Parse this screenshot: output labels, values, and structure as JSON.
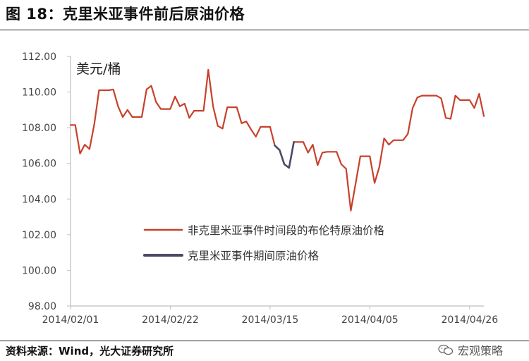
{
  "title": "图 18：克里米亚事件前后原油价格",
  "source": "资料来源：Wind，光大证券研究所",
  "watermark": "宏观策略",
  "chart_data": {
    "type": "line",
    "unit_label": "美元/桶",
    "ylim": [
      98,
      112
    ],
    "y_ticks": [
      "98.00",
      "100.00",
      "102.00",
      "104.00",
      "106.00",
      "108.00",
      "110.00",
      "112.00"
    ],
    "x_tick_labels": [
      "2014/02/01",
      "2014/02/22",
      "2014/03/15",
      "2014/04/05",
      "2014/04/26"
    ],
    "x_tick_days": [
      0,
      21,
      42,
      63,
      84
    ],
    "legend_position": "center",
    "colors": {
      "normal": "#c8402a",
      "event": "#4a4a66",
      "axis": "#bfbfbf"
    },
    "series": [
      {
        "name": "非克里米亚事件时间段的布伦特原油价格",
        "segments": [
          [
            [
              0,
              108.15
            ],
            [
              1,
              108.15
            ],
            [
              2,
              106.55
            ],
            [
              3,
              107.05
            ],
            [
              4,
              106.8
            ],
            [
              5,
              108.2
            ],
            [
              6,
              110.1
            ],
            [
              7,
              110.1
            ],
            [
              8,
              110.1
            ],
            [
              9,
              110.15
            ],
            [
              10,
              109.2
            ],
            [
              11,
              108.6
            ],
            [
              12,
              109.0
            ],
            [
              13,
              108.6
            ],
            [
              14,
              108.6
            ],
            [
              15,
              108.6
            ],
            [
              16,
              110.15
            ],
            [
              17,
              110.35
            ],
            [
              18,
              109.45
            ],
            [
              19,
              109.05
            ],
            [
              20,
              109.05
            ],
            [
              21,
              109.05
            ],
            [
              22,
              109.75
            ],
            [
              23,
              109.2
            ],
            [
              24,
              109.35
            ],
            [
              25,
              108.55
            ],
            [
              26,
              108.95
            ],
            [
              27,
              108.95
            ],
            [
              28,
              108.95
            ],
            [
              29,
              111.25
            ],
            [
              30,
              109.2
            ],
            [
              31,
              108.1
            ],
            [
              32,
              107.95
            ],
            [
              33,
              109.15
            ],
            [
              34,
              109.15
            ],
            [
              35,
              109.15
            ],
            [
              36,
              108.25
            ],
            [
              37,
              108.35
            ],
            [
              38,
              107.9
            ],
            [
              39,
              107.5
            ],
            [
              40,
              108.05
            ],
            [
              41,
              108.05
            ],
            [
              42,
              108.05
            ],
            [
              43,
              107.0
            ]
          ],
          [
            [
              47,
              107.2
            ],
            [
              48,
              107.2
            ],
            [
              49,
              107.2
            ],
            [
              50,
              106.6
            ],
            [
              51,
              107.05
            ],
            [
              52,
              105.9
            ],
            [
              53,
              106.6
            ],
            [
              54,
              106.65
            ],
            [
              55,
              106.65
            ],
            [
              56,
              106.65
            ],
            [
              57,
              105.95
            ],
            [
              58,
              105.7
            ],
            [
              59,
              103.35
            ],
            [
              60,
              104.85
            ],
            [
              61,
              106.4
            ],
            [
              62,
              106.4
            ],
            [
              63,
              106.4
            ],
            [
              64,
              104.9
            ],
            [
              65,
              105.8
            ],
            [
              66,
              107.4
            ],
            [
              67,
              107.05
            ],
            [
              68,
              107.3
            ],
            [
              69,
              107.3
            ],
            [
              70,
              107.3
            ],
            [
              71,
              107.65
            ],
            [
              72,
              109.1
            ],
            [
              73,
              109.7
            ],
            [
              74,
              109.8
            ],
            [
              75,
              109.8
            ],
            [
              76,
              109.8
            ],
            [
              77,
              109.8
            ],
            [
              78,
              109.65
            ],
            [
              79,
              108.55
            ],
            [
              80,
              108.5
            ],
            [
              81,
              109.8
            ],
            [
              82,
              109.55
            ],
            [
              83,
              109.55
            ],
            [
              84,
              109.55
            ],
            [
              85,
              109.1
            ],
            [
              86,
              109.9
            ],
            [
              87,
              108.65
            ]
          ]
        ]
      },
      {
        "name": "克里米亚事件期间原油价格",
        "segments": [
          [
            [
              43,
              107.0
            ],
            [
              44,
              106.75
            ],
            [
              45,
              105.95
            ],
            [
              46,
              105.75
            ],
            [
              47,
              107.2
            ]
          ]
        ]
      }
    ]
  }
}
